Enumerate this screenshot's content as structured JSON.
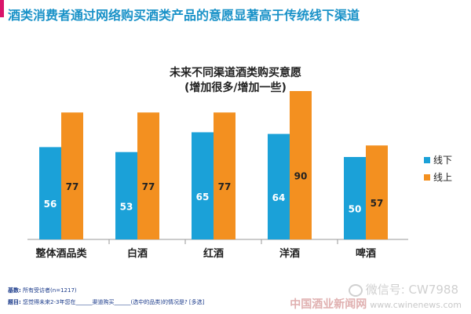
{
  "headline": "酒类消费者通过网络购买酒类产品的意愿显著高于传统线下渠道",
  "chart_data": {
    "type": "bar",
    "title": "未来不同渠道酒类购买意愿",
    "subtitle": "(增加很多/增加一些)",
    "categories": [
      "整体酒品类",
      "白酒",
      "红酒",
      "洋酒",
      "啤酒"
    ],
    "series": [
      {
        "name": "线下",
        "color": "#1ba1d8",
        "values": [
          56,
          53,
          65,
          64,
          50
        ]
      },
      {
        "name": "线上",
        "color": "#f39020",
        "values": [
          77,
          77,
          77,
          90,
          57
        ]
      }
    ],
    "ylim": [
      0,
      100
    ],
    "grid": false,
    "legend": "right"
  },
  "footer": {
    "base_label": "基数:",
    "base_text": "所有受访者(n=1217)",
    "question_label": "题目:",
    "question_text": "您觉得未来2-3年您在______渠道购买______(选中的品类)的情况是? [多选]"
  },
  "watermark": {
    "wechat": "微信号: CW7988",
    "site": "中国酒业新闻网",
    "url": "www.cwinenews.com"
  }
}
